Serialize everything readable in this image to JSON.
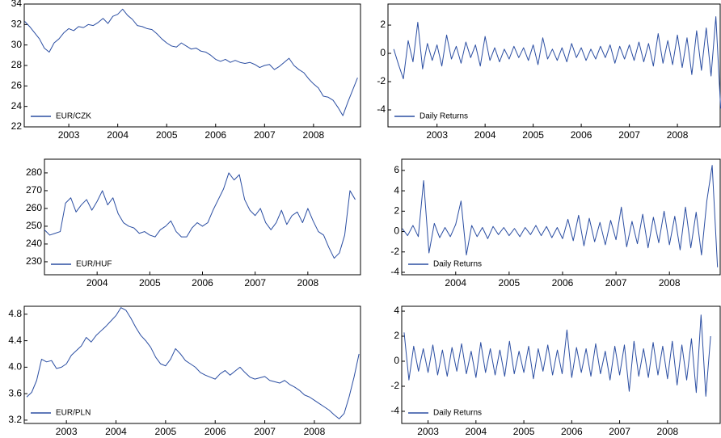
{
  "chart_data": [
    {
      "type": "line",
      "legend": "lower left",
      "x": [
        2002.1,
        2002.2,
        2002.3,
        2002.4,
        2002.5,
        2002.6,
        2002.7,
        2002.8,
        2002.9,
        2003.0,
        2003.1,
        2003.2,
        2003.3,
        2003.4,
        2003.5,
        2003.6,
        2003.7,
        2003.8,
        2003.9,
        2004.0,
        2004.1,
        2004.2,
        2004.3,
        2004.4,
        2004.5,
        2004.6,
        2004.7,
        2004.8,
        2004.9,
        2005.0,
        2005.1,
        2005.2,
        2005.3,
        2005.4,
        2005.5,
        2005.6,
        2005.7,
        2005.8,
        2005.9,
        2006.0,
        2006.1,
        2006.2,
        2006.3,
        2006.4,
        2006.5,
        2006.6,
        2006.7,
        2006.8,
        2006.9,
        2007.0,
        2007.1,
        2007.2,
        2007.3,
        2007.4,
        2007.5,
        2007.6,
        2007.7,
        2007.8,
        2007.9,
        2008.0,
        2008.1,
        2008.2,
        2008.3,
        2008.4,
        2008.5,
        2008.6,
        2008.7,
        2008.8,
        2008.9
      ],
      "series": [
        {
          "name": "EUR/CZK",
          "color": "#2b4ea2",
          "values": [
            32.3,
            31.8,
            31.2,
            30.6,
            29.7,
            29.3,
            30.2,
            30.6,
            31.2,
            31.6,
            31.4,
            31.8,
            31.7,
            32.0,
            31.9,
            32.2,
            32.6,
            32.1,
            32.8,
            33.0,
            33.5,
            32.9,
            32.5,
            31.9,
            31.8,
            31.6,
            31.5,
            31.1,
            30.6,
            30.2,
            29.9,
            29.8,
            30.2,
            29.9,
            29.6,
            29.7,
            29.4,
            29.3,
            29.0,
            28.6,
            28.4,
            28.6,
            28.3,
            28.5,
            28.3,
            28.2,
            28.3,
            28.1,
            27.8,
            28.0,
            28.1,
            27.6,
            27.9,
            28.3,
            28.7,
            28.0,
            27.6,
            27.3,
            26.7,
            26.2,
            25.8,
            25.0,
            24.9,
            24.6,
            23.9,
            23.1,
            24.4,
            25.6,
            26.8
          ]
        }
      ],
      "xlim": [
        2002.09,
        2008.96
      ],
      "ylim": [
        22,
        34
      ],
      "xticks": [
        2003,
        2004,
        2005,
        2006,
        2007,
        2008
      ],
      "yticks": [
        22,
        24,
        26,
        28,
        30,
        32,
        34
      ]
    },
    {
      "type": "line",
      "legend": "lower left",
      "x": [
        2002.1,
        2002.2,
        2002.3,
        2002.4,
        2002.5,
        2002.6,
        2002.7,
        2002.8,
        2002.9,
        2003.0,
        2003.1,
        2003.2,
        2003.3,
        2003.4,
        2003.5,
        2003.6,
        2003.7,
        2003.8,
        2003.9,
        2004.0,
        2004.1,
        2004.2,
        2004.3,
        2004.4,
        2004.5,
        2004.6,
        2004.7,
        2004.8,
        2004.9,
        2005.0,
        2005.1,
        2005.2,
        2005.3,
        2005.4,
        2005.5,
        2005.6,
        2005.7,
        2005.8,
        2005.9,
        2006.0,
        2006.1,
        2006.2,
        2006.3,
        2006.4,
        2006.5,
        2006.6,
        2006.7,
        2006.8,
        2006.9,
        2007.0,
        2007.1,
        2007.2,
        2007.3,
        2007.4,
        2007.5,
        2007.6,
        2007.7,
        2007.8,
        2007.9,
        2008.0,
        2008.1,
        2008.2,
        2008.3,
        2008.4,
        2008.5,
        2008.6,
        2008.7,
        2008.8,
        2008.9
      ],
      "series": [
        {
          "name": "Daily Returns",
          "color": "#2b4ea2",
          "values": [
            0.3,
            -0.8,
            -1.8,
            0.9,
            -0.6,
            2.2,
            -1.1,
            0.7,
            -0.5,
            0.6,
            -0.9,
            1.3,
            -0.4,
            0.5,
            -0.7,
            0.8,
            -0.3,
            0.6,
            -0.9,
            1.2,
            -0.5,
            0.4,
            -0.6,
            0.3,
            -0.4,
            0.5,
            -0.3,
            0.4,
            -0.5,
            0.6,
            -0.8,
            1.1,
            -0.4,
            0.3,
            -0.5,
            0.4,
            -0.6,
            0.7,
            -0.3,
            0.4,
            -0.5,
            0.3,
            -0.4,
            0.5,
            -0.3,
            0.6,
            -0.7,
            0.5,
            -0.4,
            0.6,
            -0.5,
            0.8,
            -0.6,
            0.7,
            -0.9,
            1.4,
            -0.7,
            0.9,
            -0.8,
            1.3,
            -1.0,
            1.1,
            -1.5,
            1.6,
            -1.2,
            1.8,
            -1.6,
            2.6,
            -3.9
          ]
        }
      ],
      "xlim": [
        2001.98,
        2008.89
      ],
      "ylim": [
        -5.2,
        3.49
      ],
      "xticks": [
        2003,
        2004,
        2005,
        2006,
        2007,
        2008
      ],
      "yticks": [
        -4,
        -2,
        0,
        2
      ]
    },
    {
      "type": "line",
      "legend": "lower left",
      "x": [
        2003.0,
        2003.1,
        2003.2,
        2003.3,
        2003.4,
        2003.5,
        2003.6,
        2003.7,
        2003.8,
        2003.9,
        2004.0,
        2004.1,
        2004.2,
        2004.3,
        2004.4,
        2004.5,
        2004.6,
        2004.7,
        2004.8,
        2004.9,
        2005.0,
        2005.1,
        2005.2,
        2005.3,
        2005.4,
        2005.5,
        2005.6,
        2005.7,
        2005.8,
        2005.9,
        2006.0,
        2006.1,
        2006.2,
        2006.3,
        2006.4,
        2006.5,
        2006.6,
        2006.7,
        2006.8,
        2006.9,
        2007.0,
        2007.1,
        2007.2,
        2007.3,
        2007.4,
        2007.5,
        2007.6,
        2007.7,
        2007.8,
        2007.9,
        2008.0,
        2008.1,
        2008.2,
        2008.3,
        2008.4,
        2008.5,
        2008.6,
        2008.7,
        2008.8,
        2008.9
      ],
      "series": [
        {
          "name": "EUR/HUF",
          "color": "#2b4ea2",
          "values": [
            248,
            245,
            246,
            247,
            263,
            266,
            258,
            262,
            265,
            259,
            264,
            270,
            262,
            266,
            257,
            252,
            250,
            249,
            246,
            247,
            245,
            244,
            248,
            250,
            253,
            247,
            244,
            244,
            249,
            252,
            250,
            252,
            259,
            265,
            271,
            280,
            276,
            279,
            265,
            259,
            256,
            260,
            252,
            248,
            252,
            259,
            251,
            256,
            258,
            252,
            260,
            253,
            247,
            245,
            238,
            232,
            235,
            245,
            270,
            265
          ]
        }
      ],
      "xlim": [
        2003.0,
        2009.0
      ],
      "ylim": [
        222.7,
        287.7
      ],
      "xticks": [
        2004,
        2005,
        2006,
        2007,
        2008
      ],
      "yticks": [
        230,
        240,
        250,
        260,
        270,
        280
      ]
    },
    {
      "type": "line",
      "legend": "lower left",
      "x": [
        2003.0,
        2003.1,
        2003.2,
        2003.3,
        2003.4,
        2003.5,
        2003.6,
        2003.7,
        2003.8,
        2003.9,
        2004.0,
        2004.1,
        2004.2,
        2004.3,
        2004.4,
        2004.5,
        2004.6,
        2004.7,
        2004.8,
        2004.9,
        2005.0,
        2005.1,
        2005.2,
        2005.3,
        2005.4,
        2005.5,
        2005.6,
        2005.7,
        2005.8,
        2005.9,
        2006.0,
        2006.1,
        2006.2,
        2006.3,
        2006.4,
        2006.5,
        2006.6,
        2006.7,
        2006.8,
        2006.9,
        2007.0,
        2007.1,
        2007.2,
        2007.3,
        2007.4,
        2007.5,
        2007.6,
        2007.7,
        2007.8,
        2007.9,
        2008.0,
        2008.1,
        2008.2,
        2008.3,
        2008.4,
        2008.5,
        2008.6,
        2008.7,
        2008.8,
        2008.9
      ],
      "series": [
        {
          "name": "Daily Returns",
          "color": "#2b4ea2",
          "values": [
            0.3,
            -0.4,
            0.6,
            -0.5,
            5.0,
            -2.1,
            0.8,
            -0.6,
            0.4,
            -0.5,
            0.7,
            3.0,
            -2.3,
            0.6,
            -0.5,
            0.4,
            -0.7,
            0.5,
            -0.3,
            0.4,
            -0.4,
            0.3,
            -0.5,
            0.4,
            -0.3,
            0.6,
            -0.4,
            0.5,
            -0.6,
            0.4,
            -0.7,
            1.2,
            -0.9,
            1.6,
            -1.4,
            1.3,
            -1.0,
            0.9,
            -1.3,
            1.1,
            -0.8,
            2.4,
            -1.5,
            1.0,
            -1.2,
            1.7,
            -1.6,
            1.4,
            -1.1,
            2.0,
            -1.3,
            1.5,
            -1.8,
            2.4,
            -1.6,
            1.9,
            -2.3,
            3.0,
            6.5,
            -3.5
          ]
        }
      ],
      "xlim": [
        2002.99,
        2008.95
      ],
      "ylim": [
        -4.24,
        7.1
      ],
      "xticks": [
        2004,
        2005,
        2006,
        2007,
        2008
      ],
      "yticks": [
        -4,
        -2,
        0,
        2,
        4,
        6
      ]
    },
    {
      "type": "line",
      "legend": "lower left",
      "x": [
        2002.2,
        2002.3,
        2002.4,
        2002.5,
        2002.6,
        2002.7,
        2002.8,
        2002.9,
        2003.0,
        2003.1,
        2003.2,
        2003.3,
        2003.4,
        2003.5,
        2003.6,
        2003.7,
        2003.8,
        2003.9,
        2004.0,
        2004.1,
        2004.2,
        2004.3,
        2004.4,
        2004.5,
        2004.6,
        2004.7,
        2004.8,
        2004.9,
        2005.0,
        2005.1,
        2005.2,
        2005.3,
        2005.4,
        2005.5,
        2005.6,
        2005.7,
        2005.8,
        2005.9,
        2006.0,
        2006.1,
        2006.2,
        2006.3,
        2006.4,
        2006.5,
        2006.6,
        2006.7,
        2006.8,
        2006.9,
        2007.0,
        2007.1,
        2007.2,
        2007.3,
        2007.4,
        2007.5,
        2007.6,
        2007.7,
        2007.8,
        2007.9,
        2008.0,
        2008.1,
        2008.2,
        2008.3,
        2008.4,
        2008.5,
        2008.6,
        2008.7,
        2008.8,
        2008.9
      ],
      "series": [
        {
          "name": "EUR/PLN",
          "color": "#2b4ea2",
          "values": [
            3.55,
            3.62,
            3.8,
            4.12,
            4.08,
            4.1,
            3.98,
            4.0,
            4.05,
            4.18,
            4.25,
            4.32,
            4.45,
            4.38,
            4.48,
            4.55,
            4.62,
            4.7,
            4.78,
            4.9,
            4.86,
            4.74,
            4.6,
            4.48,
            4.4,
            4.3,
            4.15,
            4.05,
            4.02,
            4.12,
            4.28,
            4.2,
            4.1,
            4.05,
            4.0,
            3.92,
            3.88,
            3.85,
            3.82,
            3.9,
            3.95,
            3.88,
            3.94,
            4.0,
            3.92,
            3.85,
            3.82,
            3.84,
            3.86,
            3.8,
            3.78,
            3.76,
            3.8,
            3.74,
            3.7,
            3.65,
            3.58,
            3.55,
            3.5,
            3.45,
            3.4,
            3.35,
            3.28,
            3.22,
            3.3,
            3.55,
            3.85,
            4.2
          ]
        }
      ],
      "xlim": [
        2002.15,
        2008.93
      ],
      "ylim": [
        3.15,
        4.92
      ],
      "xticks": [
        2003,
        2004,
        2005,
        2006,
        2007,
        2008
      ],
      "yticks": [
        3.2,
        3.6,
        {
          "value": 4,
          "label": "4.0"
        },
        4.4,
        4.8
      ]
    },
    {
      "type": "line",
      "legend": "lower left",
      "x": [
        2002.5,
        2002.6,
        2002.7,
        2002.8,
        2002.9,
        2003.0,
        2003.1,
        2003.2,
        2003.3,
        2003.4,
        2003.5,
        2003.6,
        2003.7,
        2003.8,
        2003.9,
        2004.0,
        2004.1,
        2004.2,
        2004.3,
        2004.4,
        2004.5,
        2004.6,
        2004.7,
        2004.8,
        2004.9,
        2005.0,
        2005.1,
        2005.2,
        2005.3,
        2005.4,
        2005.5,
        2005.6,
        2005.7,
        2005.8,
        2005.9,
        2006.0,
        2006.1,
        2006.2,
        2006.3,
        2006.4,
        2006.5,
        2006.6,
        2006.7,
        2006.8,
        2006.9,
        2007.0,
        2007.1,
        2007.2,
        2007.3,
        2007.4,
        2007.5,
        2007.6,
        2007.7,
        2007.8,
        2007.9,
        2008.0,
        2008.1,
        2008.2,
        2008.3,
        2008.4,
        2008.5,
        2008.6,
        2008.7,
        2008.8,
        2008.9
      ],
      "series": [
        {
          "name": "Daily Returns",
          "color": "#2b4ea2",
          "values": [
            2.3,
            -1.5,
            1.2,
            -0.8,
            1.0,
            -0.9,
            1.3,
            -1.1,
            0.9,
            -1.2,
            1.1,
            -0.8,
            1.4,
            -1.0,
            0.8,
            -1.3,
            1.5,
            -0.9,
            1.0,
            -1.1,
            0.9,
            -1.2,
            1.6,
            -1.0,
            0.8,
            -0.9,
            1.2,
            -1.4,
            1.0,
            -0.8,
            1.3,
            -1.1,
            0.9,
            -1.0,
            2.5,
            -1.3,
            1.1,
            -0.9,
            1.0,
            -1.2,
            1.4,
            -1.0,
            0.8,
            -1.5,
            1.2,
            -1.1,
            1.3,
            -2.4,
            1.6,
            -1.2,
            1.0,
            -1.3,
            1.5,
            -1.1,
            1.2,
            -1.4,
            1.6,
            -1.9,
            1.3,
            -1.5,
            1.8,
            -2.5,
            3.7,
            -2.8,
            2.0
          ]
        }
      ],
      "xlim": [
        2002.45,
        2009.1
      ],
      "ylim": [
        -4.97,
        4.39
      ],
      "xticks": [
        2003,
        2004,
        2005,
        2006,
        2007,
        2008
      ],
      "yticks": [
        -4,
        -2,
        0,
        2,
        4
      ]
    }
  ]
}
